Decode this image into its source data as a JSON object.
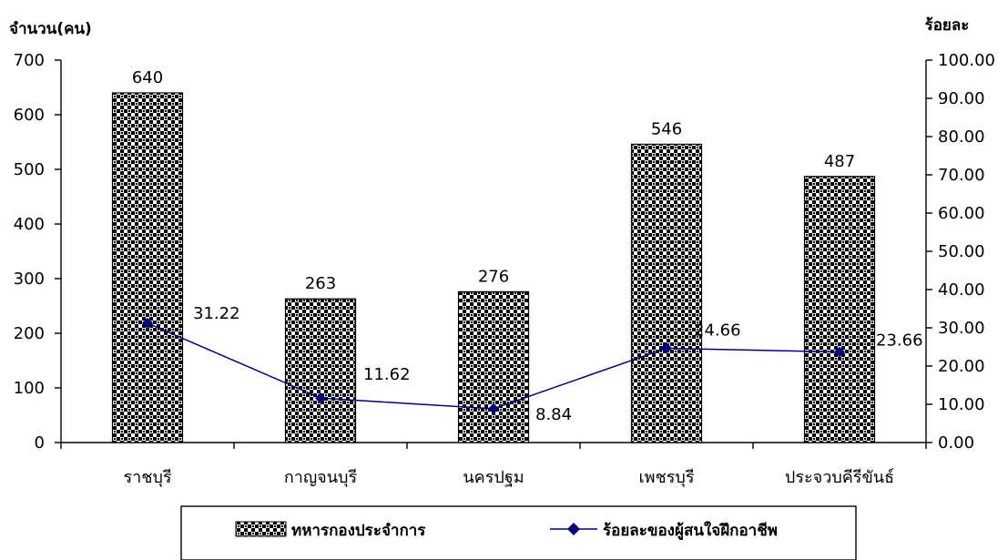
{
  "chart_data": {
    "type": "bar",
    "categories": [
      "ราชบุรี",
      "กาญจนบุรี",
      "นครปฐม",
      "เพชรบุรี",
      "ประจวบคีรีขันธ์"
    ],
    "series": [
      {
        "name": "ทหารกองประจำการ",
        "type": "bar",
        "axis": "left",
        "values": [
          640,
          263,
          276,
          546,
          487
        ],
        "labels": [
          "640",
          "263",
          "276",
          "546",
          "487"
        ]
      },
      {
        "name": "ร้อยละของผู้สนใจฝึกอาชีพ",
        "type": "line",
        "axis": "right",
        "color": "#000080",
        "values": [
          31.22,
          11.62,
          8.84,
          24.66,
          23.66
        ],
        "labels": [
          "31.22",
          "11.62",
          "8.84",
          "24.66",
          "23.66"
        ]
      }
    ],
    "ylabel": "จำนวน(คน)",
    "y2label": "ร้อยละ",
    "ylim": [
      0,
      700
    ],
    "y2lim": [
      0,
      100
    ],
    "yticks": [
      "0",
      "100",
      "200",
      "300",
      "400",
      "500",
      "600",
      "700"
    ],
    "y2ticks": [
      "0.00",
      "10.00",
      "20.00",
      "30.00",
      "40.00",
      "50.00",
      "60.00",
      "70.00",
      "80.00",
      "90.00",
      "100.00"
    ],
    "grid": false,
    "legend_position": "bottom",
    "bar_pattern": "checkerboard"
  }
}
